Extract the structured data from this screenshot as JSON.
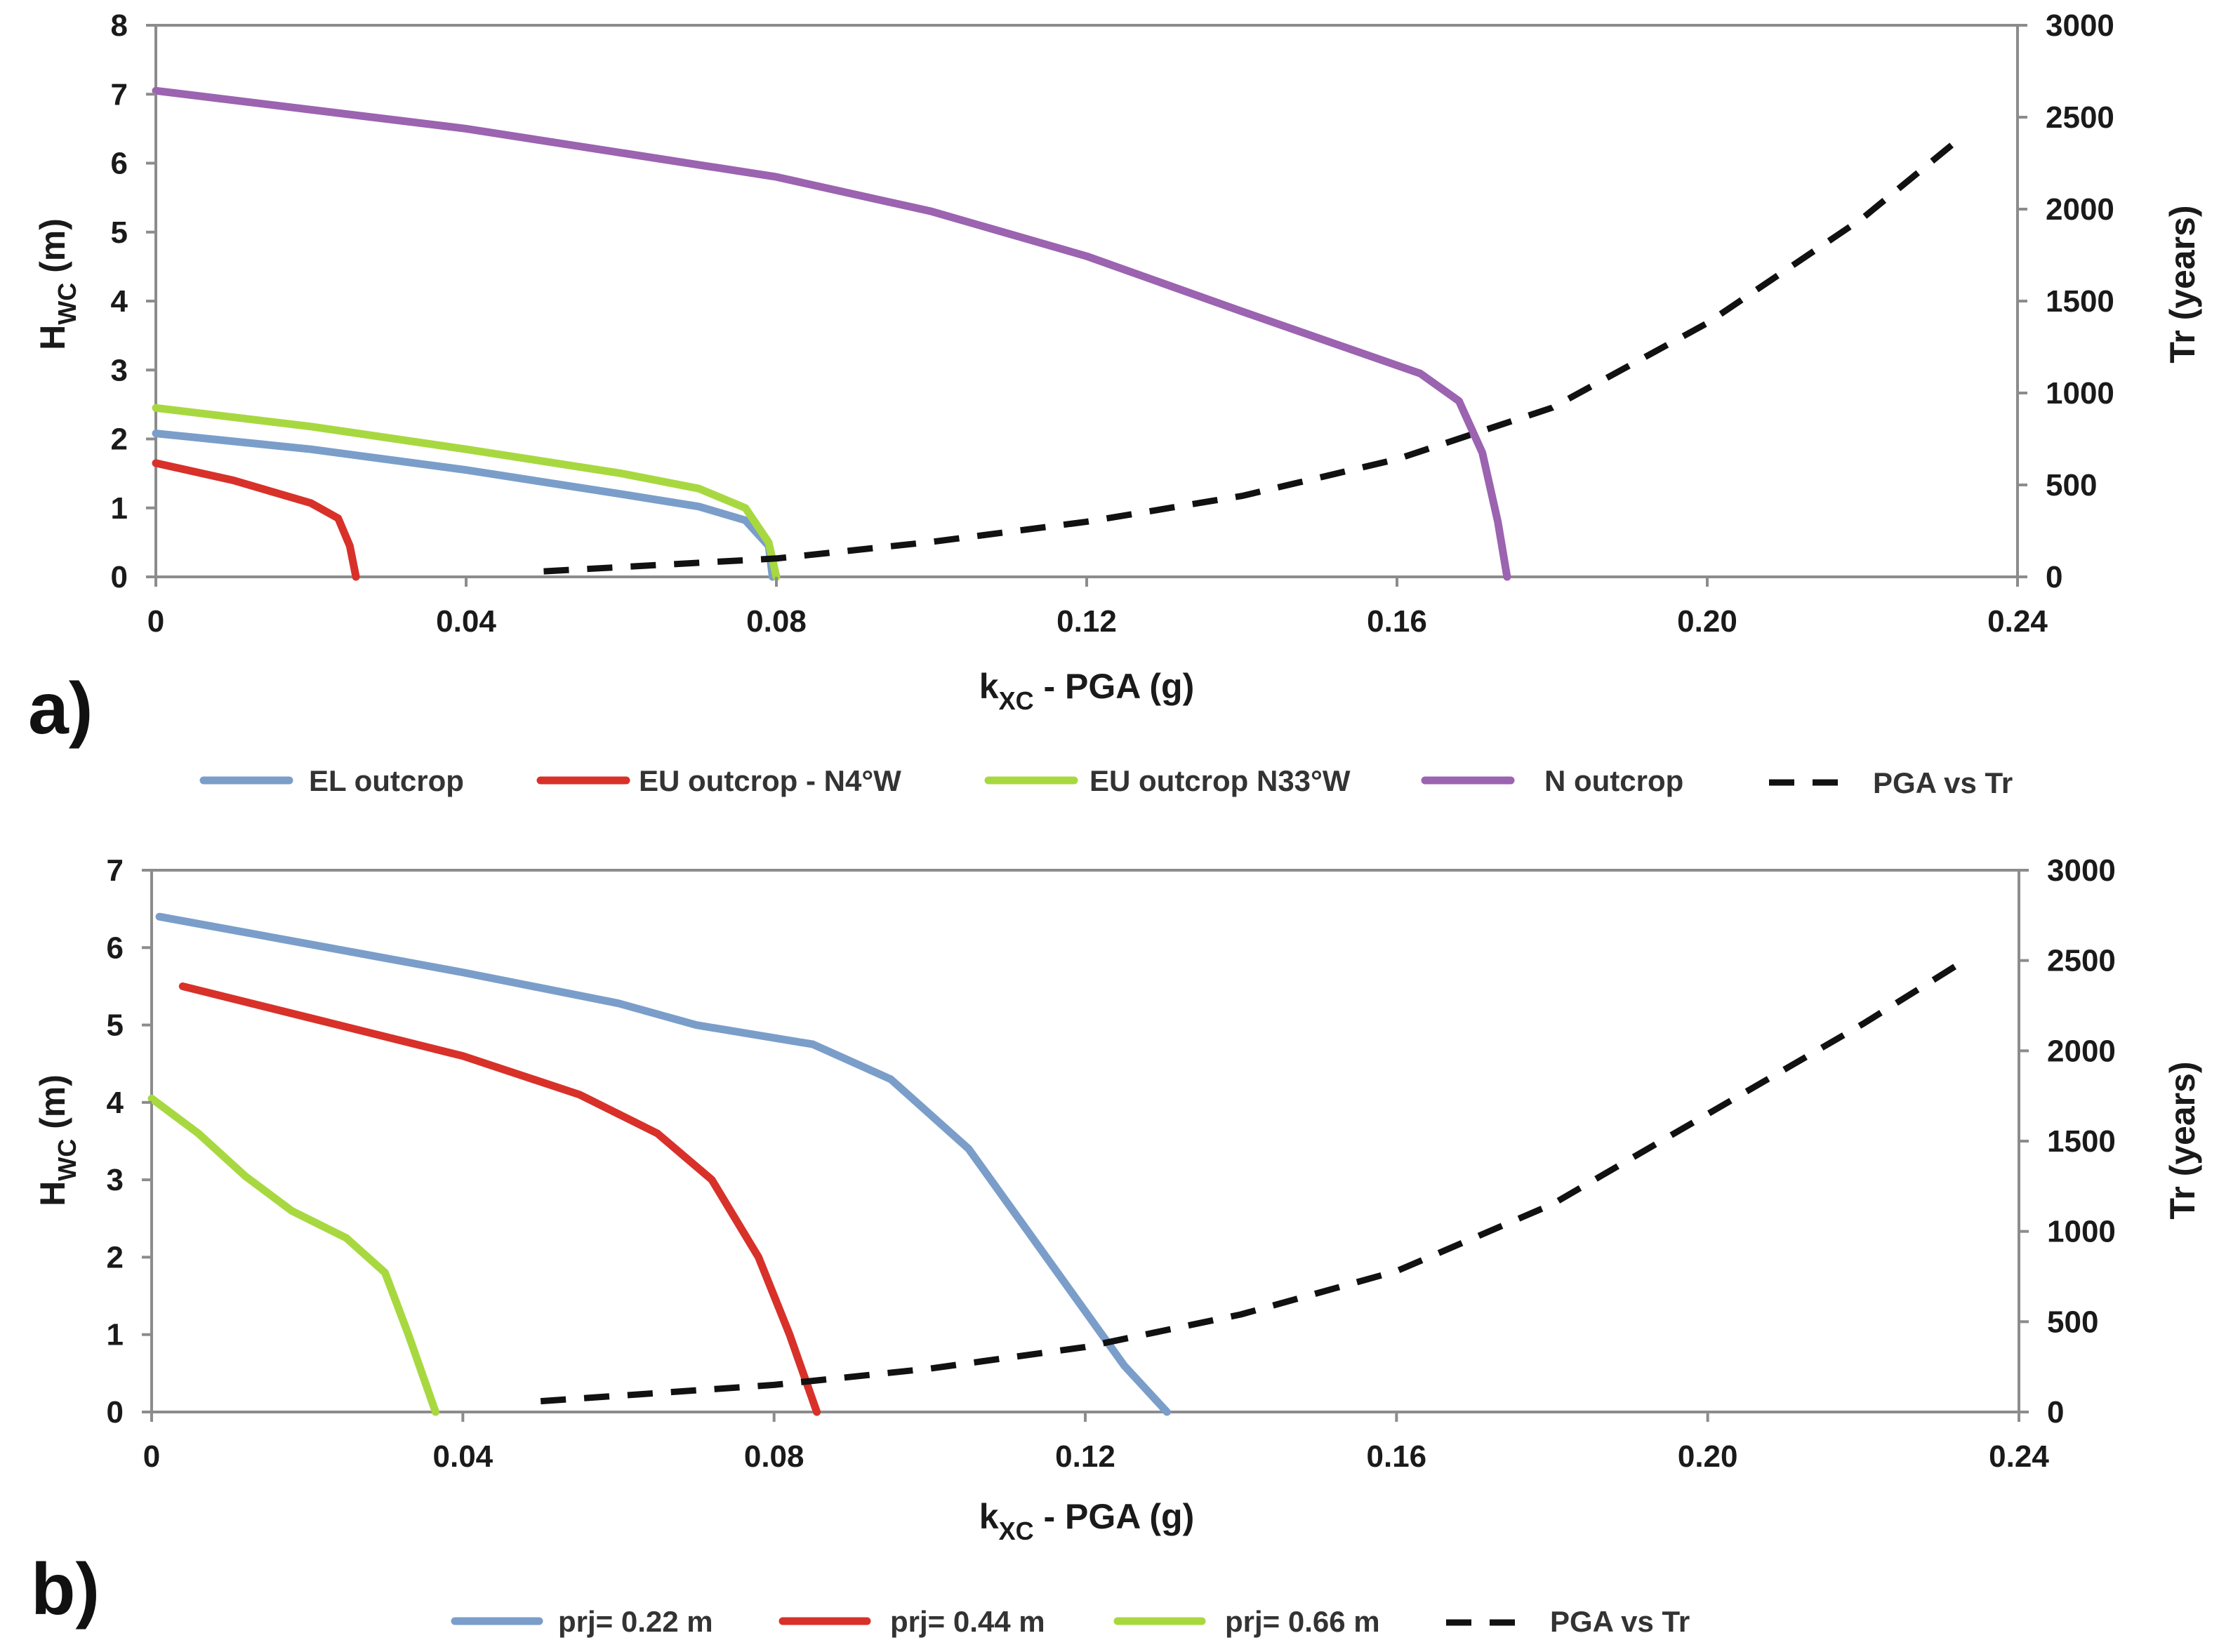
{
  "chart_data": [
    {
      "type": "line",
      "panel_label": "a)",
      "xlabel": "k",
      "xlabel_sub": "XC",
      "xlabel_rest": " - PGA (g)",
      "ylabel": "H",
      "ylabel_sub": "WC",
      "ylabel_rest": " (m)",
      "y2label": "Tr (years)",
      "xlim": [
        0,
        0.24
      ],
      "ylim": [
        0,
        8
      ],
      "y2lim": [
        0,
        3000
      ],
      "xticks": [
        0,
        0.04,
        0.08,
        0.12,
        0.16,
        0.2,
        0.24
      ],
      "xtick_labels": [
        "0",
        "0.04",
        "0.08",
        "0.12",
        "0.16",
        "0.20",
        "0.24"
      ],
      "yticks": [
        0,
        1,
        2,
        3,
        4,
        5,
        6,
        7,
        8
      ],
      "ytick_labels": [
        "0",
        "1",
        "2",
        "3",
        "4",
        "5",
        "6",
        "7",
        "8"
      ],
      "y2ticks": [
        0,
        500,
        1000,
        1500,
        2000,
        2500,
        3000
      ],
      "y2tick_labels": [
        "0",
        "500",
        "1000",
        "1500",
        "2000",
        "2500",
        "3000"
      ],
      "grid": false,
      "legend_position": "bottom",
      "series": [
        {
          "name": "EL outcrop",
          "color": "#7a9ec9",
          "axis": "left",
          "dashed": false,
          "points": [
            [
              0,
              2.08
            ],
            [
              0.02,
              1.85
            ],
            [
              0.04,
              1.55
            ],
            [
              0.06,
              1.2
            ],
            [
              0.07,
              1.02
            ],
            [
              0.076,
              0.82
            ],
            [
              0.079,
              0.45
            ],
            [
              0.0795,
              0
            ]
          ]
        },
        {
          "name": "EU outcrop - N4°W",
          "color": "#d8312a",
          "axis": "left",
          "dashed": false,
          "points": [
            [
              0,
              1.65
            ],
            [
              0.01,
              1.4
            ],
            [
              0.02,
              1.07
            ],
            [
              0.0235,
              0.85
            ],
            [
              0.025,
              0.45
            ],
            [
              0.0258,
              0
            ]
          ]
        },
        {
          "name": "EU outcrop N33°W",
          "color": "#a8d840",
          "axis": "left",
          "dashed": false,
          "points": [
            [
              0,
              2.45
            ],
            [
              0.02,
              2.18
            ],
            [
              0.04,
              1.85
            ],
            [
              0.06,
              1.5
            ],
            [
              0.07,
              1.28
            ],
            [
              0.076,
              1.0
            ],
            [
              0.079,
              0.5
            ],
            [
              0.08,
              0
            ]
          ]
        },
        {
          "name": "N outcrop",
          "color": "#9b63b0",
          "axis": "left",
          "dashed": false,
          "points": [
            [
              0,
              7.05
            ],
            [
              0.04,
              6.5
            ],
            [
              0.08,
              5.8
            ],
            [
              0.1,
              5.3
            ],
            [
              0.12,
              4.65
            ],
            [
              0.14,
              3.85
            ],
            [
              0.163,
              2.95
            ],
            [
              0.168,
              2.55
            ],
            [
              0.171,
              1.8
            ],
            [
              0.173,
              0.8
            ],
            [
              0.1742,
              0
            ]
          ]
        },
        {
          "name": "PGA vs Tr",
          "color": "#111111",
          "axis": "right",
          "dashed": true,
          "points": [
            [
              0.05,
              30
            ],
            [
              0.08,
              100
            ],
            [
              0.1,
              190
            ],
            [
              0.12,
              300
            ],
            [
              0.14,
              440
            ],
            [
              0.16,
              640
            ],
            [
              0.18,
              920
            ],
            [
              0.2,
              1380
            ],
            [
              0.22,
              1950
            ],
            [
              0.233,
              2400
            ]
          ]
        }
      ]
    },
    {
      "type": "line",
      "panel_label": "b)",
      "xlabel": "k",
      "xlabel_sub": "XC",
      "xlabel_rest": " - PGA (g)",
      "ylabel": "H",
      "ylabel_sub": "WC",
      "ylabel_rest": " (m)",
      "y2label": "Tr (years)",
      "xlim": [
        0,
        0.24
      ],
      "ylim": [
        0,
        7
      ],
      "y2lim": [
        0,
        3000
      ],
      "xticks": [
        0,
        0.04,
        0.08,
        0.12,
        0.16,
        0.2,
        0.24
      ],
      "xtick_labels": [
        "0",
        "0.04",
        "0.08",
        "0.12",
        "0.16",
        "0.20",
        "0.24"
      ],
      "yticks": [
        0,
        1,
        2,
        3,
        4,
        5,
        6,
        7
      ],
      "ytick_labels": [
        "0",
        "1",
        "2",
        "3",
        "4",
        "5",
        "6",
        "7"
      ],
      "y2ticks": [
        0,
        500,
        1000,
        1500,
        2000,
        2500,
        3000
      ],
      "y2tick_labels": [
        "0",
        "500",
        "1000",
        "1500",
        "2000",
        "2500",
        "3000"
      ],
      "grid": false,
      "legend_position": "bottom",
      "series": [
        {
          "name": "prj= 0.22 m",
          "color": "#7a9ec9",
          "axis": "left",
          "dashed": false,
          "points": [
            [
              0.001,
              6.4
            ],
            [
              0.02,
              6.05
            ],
            [
              0.04,
              5.68
            ],
            [
              0.06,
              5.28
            ],
            [
              0.07,
              5.0
            ],
            [
              0.085,
              4.75
            ],
            [
              0.095,
              4.3
            ],
            [
              0.105,
              3.4
            ],
            [
              0.115,
              2.0
            ],
            [
              0.125,
              0.6
            ],
            [
              0.1305,
              0
            ]
          ]
        },
        {
          "name": "prj= 0.44 m",
          "color": "#d8312a",
          "axis": "left",
          "dashed": false,
          "points": [
            [
              0.004,
              5.5
            ],
            [
              0.02,
              5.1
            ],
            [
              0.04,
              4.6
            ],
            [
              0.055,
              4.1
            ],
            [
              0.065,
              3.6
            ],
            [
              0.072,
              3.0
            ],
            [
              0.078,
              2.0
            ],
            [
              0.082,
              1.0
            ],
            [
              0.0855,
              0
            ]
          ]
        },
        {
          "name": "prj= 0.66 m",
          "color": "#a8d840",
          "axis": "left",
          "dashed": false,
          "points": [
            [
              0,
              4.05
            ],
            [
              0.006,
              3.6
            ],
            [
              0.012,
              3.05
            ],
            [
              0.018,
              2.6
            ],
            [
              0.025,
              2.25
            ],
            [
              0.03,
              1.8
            ],
            [
              0.033,
              1.0
            ],
            [
              0.0365,
              0
            ]
          ]
        },
        {
          "name": "PGA vs Tr",
          "color": "#111111",
          "axis": "right",
          "dashed": true,
          "points": [
            [
              0.05,
              60
            ],
            [
              0.08,
              150
            ],
            [
              0.1,
              240
            ],
            [
              0.12,
              360
            ],
            [
              0.14,
              540
            ],
            [
              0.16,
              780
            ],
            [
              0.18,
              1150
            ],
            [
              0.2,
              1650
            ],
            [
              0.22,
              2150
            ],
            [
              0.233,
              2500
            ]
          ]
        }
      ]
    }
  ]
}
